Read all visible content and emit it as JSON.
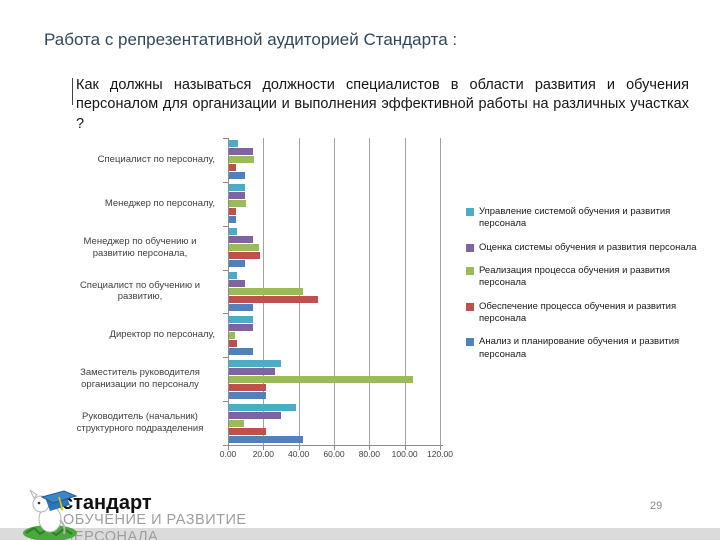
{
  "slide": {
    "title": "Работа с репрезентативной аудиторией Стандарта :",
    "question": "Как должны называться должности специалистов в области развития и обучения персоналом для организации и выполнения эффективной работы на различных участках ?",
    "page_number": "29",
    "footer": {
      "brand": "стандарт",
      "subtitle_line1": "ОБУЧЕНИЕ И РАЗВИТИЕ",
      "subtitle_line2": "ПЕРСОНАЛА",
      "logo": "graduate-dog-clipart-logo"
    }
  },
  "chart_data": {
    "type": "bar",
    "orientation": "horizontal",
    "title": "",
    "xlabel": "",
    "ylabel": "",
    "xlim": [
      0,
      120
    ],
    "x_ticks": [
      "0.00",
      "20.00",
      "40.00",
      "60.00",
      "80.00",
      "100.00",
      "120.00"
    ],
    "grid": true,
    "legend_position": "right",
    "categories": [
      "Специалист по персоналу,",
      "Менеджер по персоналу,",
      "Менеджер по обучению и развитию персонала,",
      "Специалист по обучению и развитию,",
      "Директор по персоналу,",
      "Заместитель руководителя организации по персоналу",
      "Руководитель (начальник) структурного подразделения"
    ],
    "series": [
      {
        "name": "Управление системой обучения и развития персонала",
        "color": "#4BACC6",
        "values": [
          5,
          9,
          4.5,
          4.5,
          13.5,
          29.5,
          38
        ]
      },
      {
        "name": "Оценка системы обучения и развития персонала",
        "color": "#8064A2",
        "values": [
          13.5,
          9,
          13.5,
          9,
          13.5,
          26,
          29.5
        ]
      },
      {
        "name": "Реализация процесса обучения и развития персонала",
        "color": "#9BBB59",
        "values": [
          14,
          9.5,
          17,
          42,
          3.5,
          104,
          8.5
        ]
      },
      {
        "name": "Обеспечение процесса обучения и развития персонала",
        "color": "#C0504D",
        "values": [
          4,
          4,
          17.5,
          50.5,
          4.5,
          21,
          21
        ]
      },
      {
        "name": "Анализ и планирование обучения и развития персонала",
        "color": "#4F81BD",
        "values": [
          9,
          4,
          9,
          13.5,
          13.5,
          21,
          42
        ]
      }
    ]
  }
}
